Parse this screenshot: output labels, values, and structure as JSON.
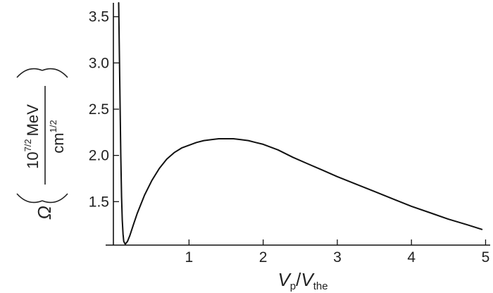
{
  "chart_data": {
    "type": "line",
    "title": "",
    "xlabel": {
      "var1": "V",
      "sub1": "p",
      "slash": "/",
      "var2": "V",
      "sub2": "the"
    },
    "ylabel": {
      "symbol": "Ω",
      "base": "10",
      "exponent": "7/2",
      "unit_num": "MeV",
      "unit_den": "cm",
      "unit_den_exp": "1/2"
    },
    "xlim": [
      -0.02,
      5.1
    ],
    "ylim": [
      1.03,
      3.65
    ],
    "x_ticks": [
      {
        "value": 1,
        "label": "1"
      },
      {
        "value": 2,
        "label": "2"
      },
      {
        "value": 3,
        "label": "3"
      },
      {
        "value": 4,
        "label": "4"
      },
      {
        "value": 5,
        "label": "5"
      }
    ],
    "y_ticks": [
      {
        "value": 1.5,
        "label": "1.5"
      },
      {
        "value": 2.0,
        "label": "2.0"
      },
      {
        "value": 2.5,
        "label": "2.5"
      },
      {
        "value": 3.0,
        "label": "3.0"
      },
      {
        "value": 3.5,
        "label": "3.5"
      }
    ],
    "grid": false,
    "series": [
      {
        "x": [
          0.08,
          0.09,
          0.1,
          0.11,
          0.12,
          0.14,
          0.17,
          0.2,
          0.25,
          0.3,
          0.4,
          0.5,
          0.6,
          0.7,
          0.8,
          0.9,
          1.0,
          1.1,
          1.2,
          1.3,
          1.4,
          1.5,
          1.6,
          1.7,
          1.8,
          1.9,
          2.0,
          2.2,
          2.4,
          2.6,
          2.8,
          3.0,
          3.25,
          3.5,
          3.75,
          4.0,
          4.25,
          4.5,
          4.75,
          4.95
        ],
        "y": [
          2.0,
          1.55,
          1.3,
          1.15,
          1.07,
          1.04,
          1.07,
          1.13,
          1.25,
          1.37,
          1.57,
          1.73,
          1.86,
          1.96,
          2.03,
          2.08,
          2.11,
          2.14,
          2.16,
          2.17,
          2.18,
          2.18,
          2.18,
          2.17,
          2.16,
          2.14,
          2.12,
          2.06,
          1.98,
          1.91,
          1.84,
          1.77,
          1.69,
          1.61,
          1.53,
          1.45,
          1.38,
          1.31,
          1.25,
          1.2
        ]
      }
    ]
  }
}
